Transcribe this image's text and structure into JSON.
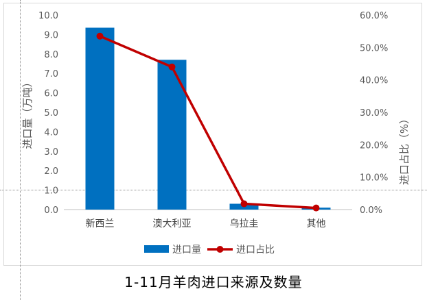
{
  "title": "1-11月羊肉进口来源及数量",
  "chart_data": {
    "type": "bar",
    "categories": [
      "新西兰",
      "澳大利亚",
      "乌拉圭",
      "其他"
    ],
    "series": [
      {
        "name": "进口量",
        "kind": "bar",
        "axis": "left",
        "color": "#0070c0",
        "values": [
          9.35,
          7.7,
          0.3,
          0.1
        ]
      },
      {
        "name": "进口占比",
        "kind": "line",
        "axis": "right",
        "color": "#c00000",
        "values": [
          53.5,
          44.0,
          1.8,
          0.5
        ]
      }
    ],
    "ylabel": "进口量（万吨）",
    "ylabel_right": "进口占比（%）",
    "ylim": [
      0,
      10
    ],
    "ylim_right": [
      0,
      60
    ],
    "yticks": [
      "0.0",
      "1.0",
      "2.0",
      "3.0",
      "4.0",
      "5.0",
      "6.0",
      "7.0",
      "8.0",
      "9.0",
      "10.0"
    ],
    "yticks_right": [
      "0.0%",
      "10.0%",
      "20.0%",
      "30.0%",
      "40.0%",
      "50.0%",
      "60.0%"
    ],
    "legend_position": "bottom",
    "grid": false
  }
}
